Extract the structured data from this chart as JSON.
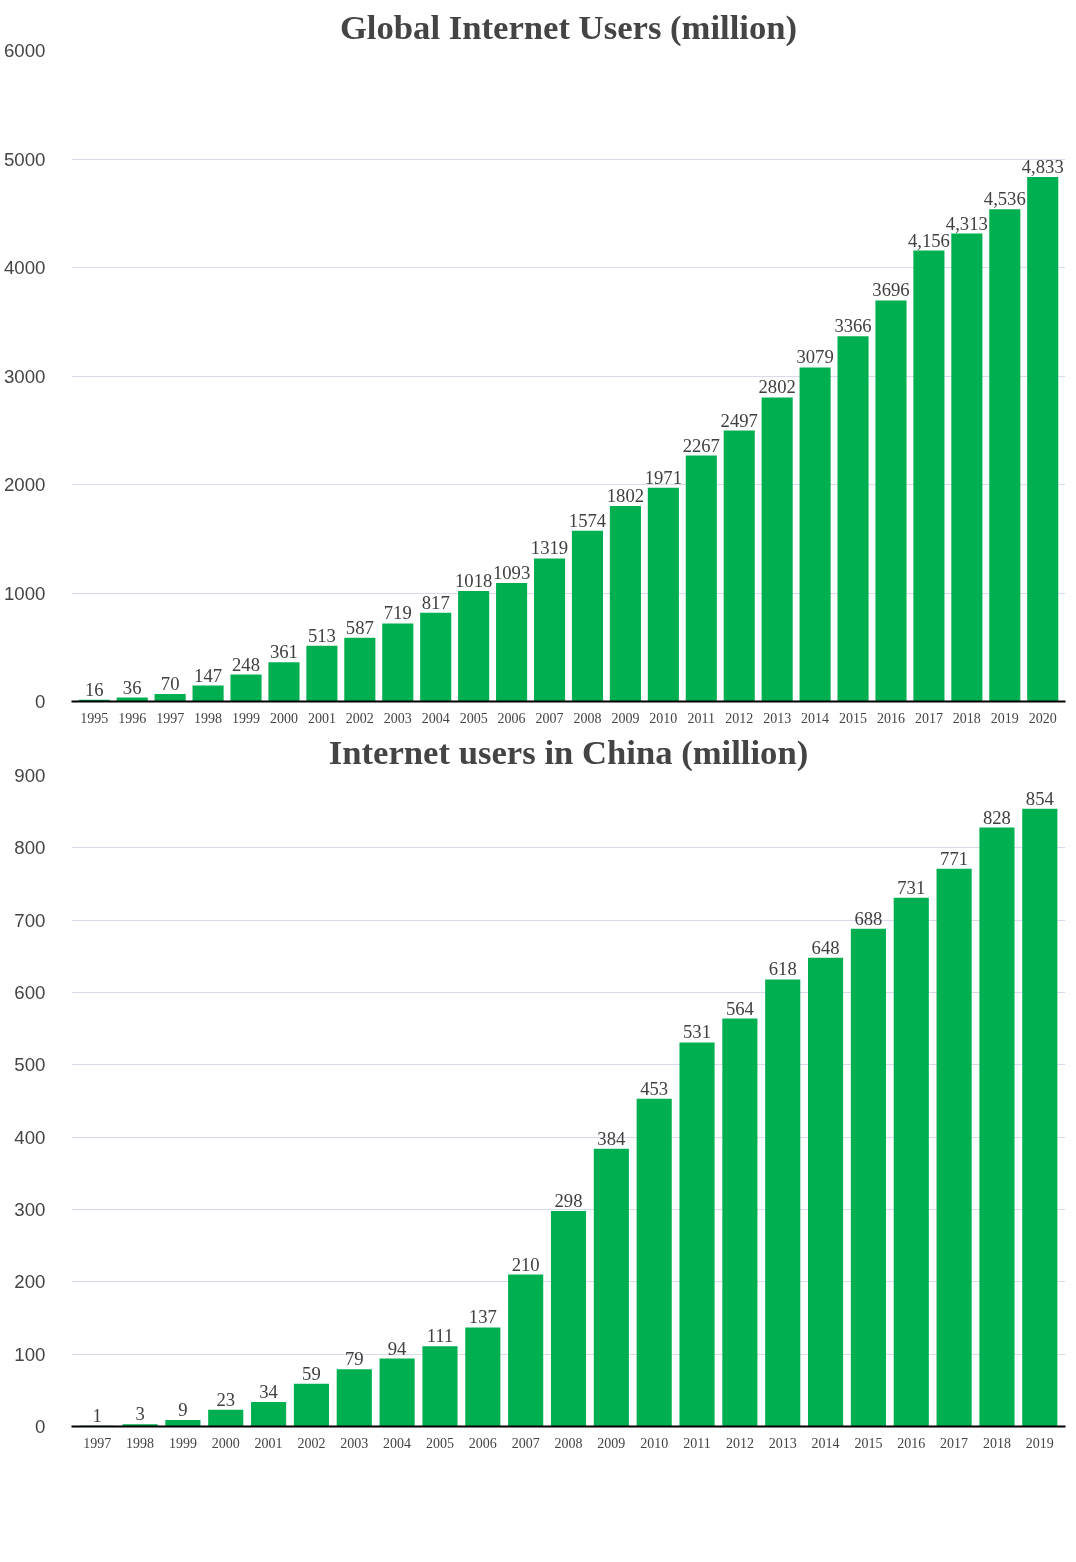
{
  "chart_data": [
    {
      "type": "bar",
      "title": "Global Internet Users (million)",
      "categories": [
        "1995",
        "1996",
        "1997",
        "1998",
        "1999",
        "2000",
        "2001",
        "2002",
        "2003",
        "2004",
        "2005",
        "2006",
        "2007",
        "2008",
        "2009",
        "2010",
        "2011",
        "2012",
        "2013",
        "2014",
        "2015",
        "2016",
        "2017",
        "2018",
        "2019",
        "2020"
      ],
      "values": [
        16,
        36,
        70,
        147,
        248,
        361,
        513,
        587,
        719,
        817,
        1018,
        1093,
        1319,
        1574,
        1802,
        1971,
        2267,
        2497,
        2802,
        3079,
        3366,
        3696,
        4156,
        4313,
        4536,
        4833
      ],
      "value_labels": [
        "16",
        "36",
        "70",
        "147",
        "248",
        "361",
        "513",
        "587",
        "719",
        "817",
        "1018",
        "1093",
        "1319",
        "1574",
        "1802",
        "1971",
        "2267",
        "2497",
        "2802",
        "3079",
        "3366",
        "3696",
        "4,156",
        "4,313",
        "4,536",
        "4,833"
      ],
      "color": "#00b050",
      "ylim": [
        0,
        6000
      ],
      "yticks": [
        0,
        1000,
        2000,
        3000,
        4000,
        5000,
        6000
      ],
      "grid": "y"
    },
    {
      "type": "bar",
      "title": "Internet users in China (million)",
      "categories": [
        "1997",
        "1998",
        "1999",
        "2000",
        "2001",
        "2002",
        "2003",
        "2004",
        "2005",
        "2006",
        "2007",
        "2008",
        "2009",
        "2010",
        "2011",
        "2012",
        "2013",
        "2014",
        "2015",
        "2016",
        "2017",
        "2018",
        "2019"
      ],
      "values": [
        1,
        3,
        9,
        23,
        34,
        59,
        79,
        94,
        111,
        137,
        210,
        298,
        384,
        453,
        531,
        564,
        618,
        648,
        688,
        731,
        771,
        828,
        854
      ],
      "color": "#00b050",
      "ylim": [
        0,
        900
      ],
      "yticks": [
        0,
        100,
        200,
        300,
        400,
        500,
        600,
        700,
        800,
        900
      ],
      "grid": "y",
      "data_labels": true
    }
  ]
}
